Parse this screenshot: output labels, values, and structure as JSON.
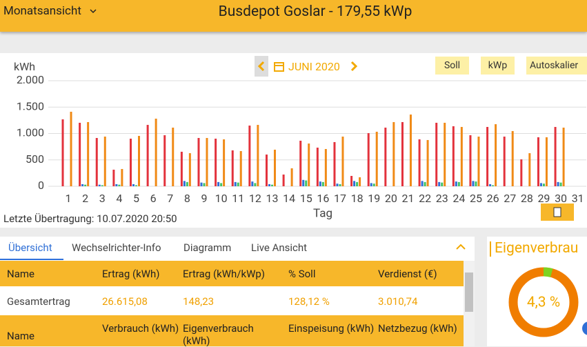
{
  "header": {
    "view_selector": "Monatsansicht",
    "title": "Busdepot Goslar - 179,55 kWp"
  },
  "toolbar": {
    "period": "JUNI 2020",
    "buttons": [
      "Soll",
      "kWp",
      "Autoskalier"
    ]
  },
  "chart_data": {
    "type": "bar",
    "y_label": "kWh",
    "x_label": "Tag",
    "categories": [
      "1",
      "2",
      "3",
      "4",
      "5",
      "6",
      "7",
      "8",
      "9",
      "10",
      "11",
      "12",
      "13",
      "14",
      "15",
      "16",
      "17",
      "18",
      "19",
      "20",
      "21",
      "22",
      "23",
      "24",
      "25",
      "26",
      "27",
      "28",
      "29",
      "30",
      "31"
    ],
    "series": [
      {
        "color": "#e3323c",
        "values": [
          1268,
          1203,
          915,
          314,
          902,
          1163,
          967,
          654,
          915,
          902,
          680,
          1150,
          601,
          222,
          863,
          732,
          837,
          196,
          1007,
          1111,
          1216,
          889,
          1203,
          1137,
          967,
          1124,
          941,
          510,
          928,
          1124,
          null
        ]
      },
      {
        "color": "#2f6fd6",
        "values": [
          0,
          40,
          30,
          40,
          40,
          0,
          0,
          100,
          70,
          80,
          80,
          90,
          40,
          0,
          120,
          90,
          50,
          100,
          60,
          0,
          0,
          100,
          80,
          90,
          100,
          40,
          0,
          0,
          60,
          80,
          null
        ]
      },
      {
        "color": "#41c466",
        "values": [
          0,
          30,
          20,
          30,
          20,
          0,
          0,
          80,
          60,
          60,
          70,
          60,
          30,
          0,
          110,
          80,
          40,
          80,
          50,
          0,
          0,
          80,
          70,
          80,
          90,
          20,
          0,
          0,
          50,
          70,
          null
        ]
      },
      {
        "color": "#f08a16",
        "values": [
          1412,
          1216,
          941,
          327,
          954,
          1281,
          1111,
          627,
          915,
          889,
          667,
          1163,
          693,
          340,
          810,
          706,
          941,
          170,
          1033,
          1216,
          1359,
          876,
          1203,
          1124,
          941,
          1176,
          1046,
          627,
          928,
          1111,
          null
        ]
      }
    ],
    "ylim": [
      0,
      2000
    ],
    "yticks": [
      0,
      500,
      {
        "value": 1000,
        "label": "1.000"
      },
      {
        "value": 1500,
        "label": "1.500"
      },
      {
        "value": 2000,
        "label": "2.000"
      }
    ],
    "grid": true
  },
  "last_transfer": "Letzte Übertragung: 10.07.2020 20:50",
  "tabs": [
    "Übersicht",
    "Wechselrichter-Info",
    "Diagramm",
    "Live Ansicht"
  ],
  "table": {
    "header": [
      "Name",
      "Ertrag (kWh)",
      "Ertrag (kWh/kWp)",
      "% Soll",
      "Verdienst (€)"
    ],
    "rows": [
      [
        "Gesamtertrag",
        "26.615,08",
        "148,23",
        "128,12 %",
        "3.010,74"
      ]
    ],
    "header2": [
      "Name",
      "Verbrauch (kWh)",
      "Eigenverbrauch (kWh)",
      "Einspeisung (kWh)",
      "Netzbezug (kWh)"
    ]
  },
  "self_consumption": {
    "title": "Eigenverbrau",
    "value": 4.3,
    "label": "4,3 %"
  }
}
